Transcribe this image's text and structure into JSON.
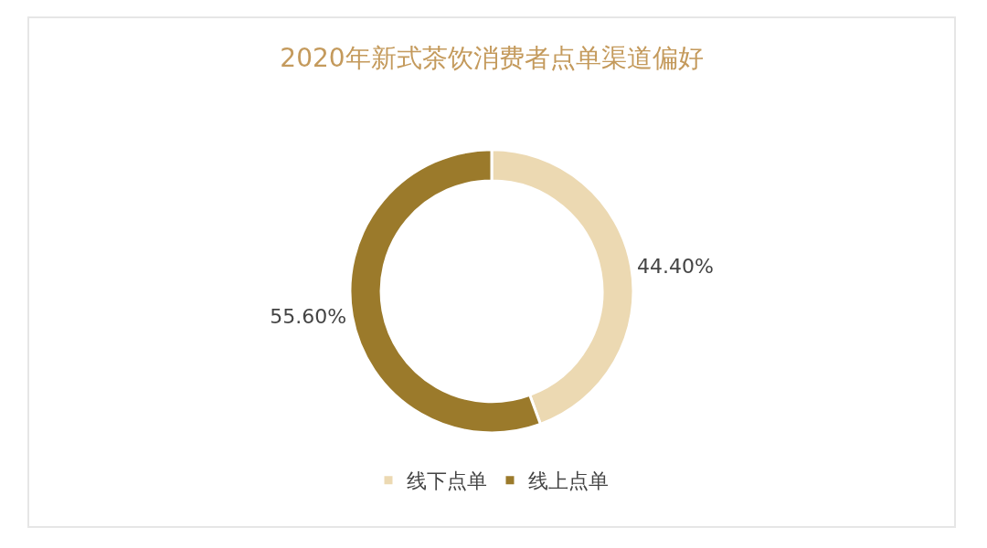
{
  "chart_data": {
    "type": "donut",
    "title": "2020年新式茶饮消费者点单渠道偏好",
    "categories": [
      "线下点单",
      "线上点单"
    ],
    "values": [
      44.4,
      55.6
    ],
    "value_labels": [
      "44.40%",
      "55.60%"
    ],
    "colors": [
      "#ecd9b2",
      "#9b7a2b"
    ],
    "legend": "bottom"
  }
}
